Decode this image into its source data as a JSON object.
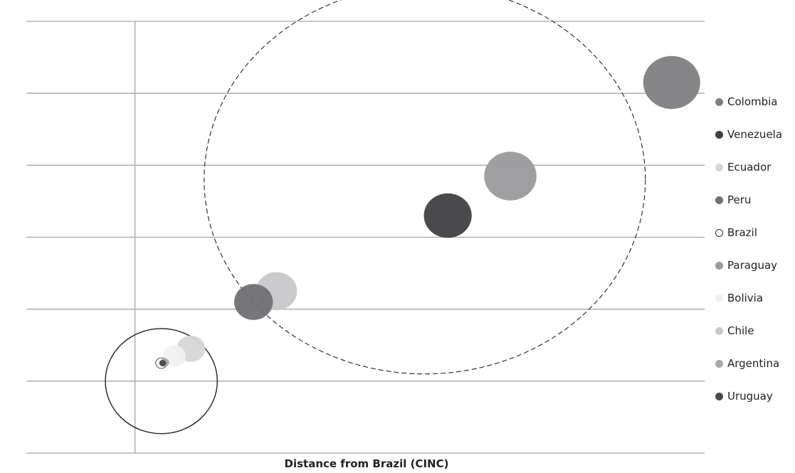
{
  "chart_data": {
    "type": "bubble",
    "title": "",
    "xlabel": "Distance from Brazil (CINC)",
    "ylabel": "",
    "grid": true,
    "gridlines": 7,
    "legend_position": "right",
    "series": [
      {
        "name": "Colombia",
        "color": "#7f7f82",
        "x": 8.15,
        "y": 5.15,
        "size": 1.0
      },
      {
        "name": "Venezuela",
        "color": "#404042",
        "x": 4.75,
        "y": 3.3,
        "size": 0.84
      },
      {
        "name": "Ecuador",
        "color": "#d6d6d8",
        "x": 0.85,
        "y": 1.45,
        "size": 0.5
      },
      {
        "name": "Peru",
        "color": "#707074",
        "x": 1.8,
        "y": 2.1,
        "size": 0.68
      },
      {
        "name": "Brazil",
        "color": "#ffffff",
        "x": 0.4,
        "y": 1.25,
        "size": 0.2,
        "hollow": true
      },
      {
        "name": "Paraguay",
        "color": "#9a9a9d",
        "x": 5.7,
        "y": 3.85,
        "size": 0.92
      },
      {
        "name": "Bolivia",
        "color": "#f0f0f1",
        "x": 0.6,
        "y": 1.35,
        "size": 0.4
      },
      {
        "name": "Chile",
        "color": "#c8c8ca",
        "x": 2.15,
        "y": 2.25,
        "size": 0.72
      },
      {
        "name": "Argentina",
        "color": "#a9a9ab",
        "x": 0.45,
        "y": 1.26,
        "size": 0.16
      },
      {
        "name": "Uruguay",
        "color": "#4a4a4c",
        "x": 0.42,
        "y": 1.25,
        "size": 0.12
      }
    ],
    "clusters": [
      {
        "style": "solid",
        "cx": 0.4,
        "cy": 1.0,
        "rx": 0.85,
        "ry": 0.73
      },
      {
        "style": "dashed",
        "cx": 4.4,
        "cy": 3.8,
        "rx": 3.35,
        "ry": 2.7
      }
    ],
    "xlim": [
      -1.65,
      8.65
    ],
    "ylim": [
      0,
      6
    ]
  }
}
